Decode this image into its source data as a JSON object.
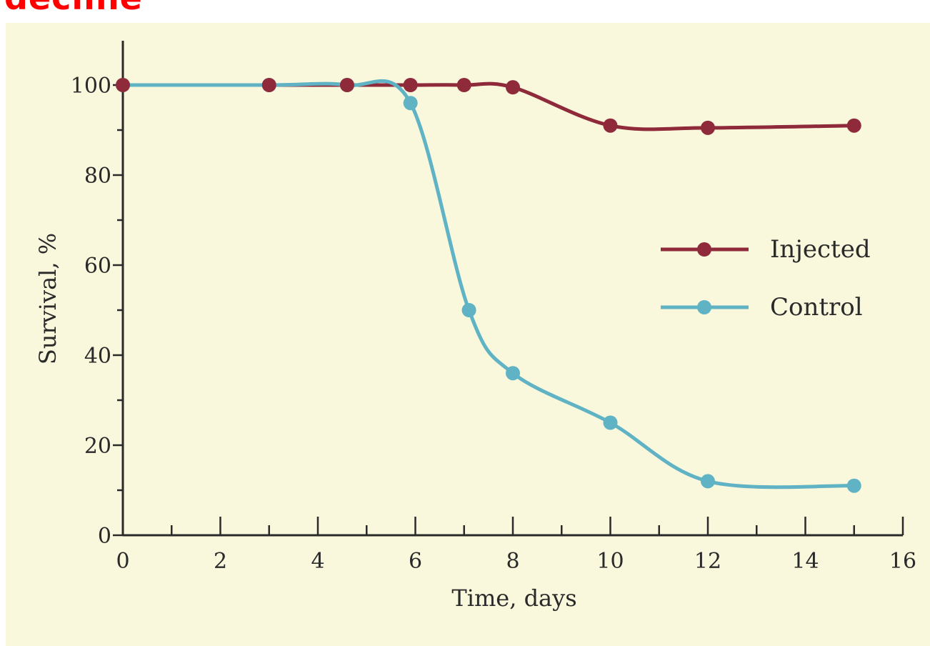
{
  "header": {
    "text": "decline"
  },
  "chart_data": {
    "type": "line",
    "xlabel": "Time, days",
    "ylabel": "Survival, %",
    "xlim": [
      0,
      16
    ],
    "ylim": [
      0,
      100
    ],
    "x_ticks": [
      0,
      2,
      4,
      6,
      8,
      10,
      12,
      14,
      16
    ],
    "y_ticks": [
      0,
      20,
      40,
      60,
      80,
      100
    ],
    "grid": false,
    "legend_position": "right",
    "series": [
      {
        "name": "Injected",
        "color": "#8e2a3a",
        "points": [
          [
            0,
            100
          ],
          [
            3,
            100
          ],
          [
            4.6,
            100
          ],
          [
            5.9,
            100
          ],
          [
            7,
            100
          ],
          [
            8,
            99.5
          ],
          [
            10,
            91
          ],
          [
            12,
            90.5
          ],
          [
            15,
            91
          ]
        ]
      },
      {
        "name": "Control",
        "color": "#5fb3c4",
        "points": [
          [
            0,
            100
          ],
          [
            3,
            100
          ],
          [
            4.6,
            100
          ],
          [
            5.9,
            96
          ],
          [
            7.1,
            50
          ],
          [
            8,
            36
          ],
          [
            10,
            25
          ],
          [
            12,
            12
          ],
          [
            15,
            11
          ]
        ]
      }
    ]
  }
}
